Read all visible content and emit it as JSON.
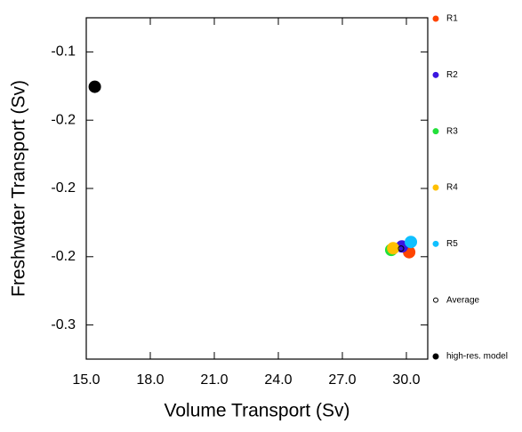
{
  "chart_data": {
    "type": "scatter",
    "xlabel": "Volume Transport (Sv)",
    "ylabel": "Freshwater Transport (Sv)",
    "xlim": [
      15,
      31
    ],
    "ylim": [
      -0.325,
      -0.075
    ],
    "xticks": [
      {
        "value": 15,
        "label": "15.0"
      },
      {
        "value": 18,
        "label": "18.0"
      },
      {
        "value": 21,
        "label": "21.0"
      },
      {
        "value": 24,
        "label": "24.0"
      },
      {
        "value": 27,
        "label": "27.0"
      },
      {
        "value": 30,
        "label": "30.0"
      }
    ],
    "yticks": [
      {
        "value": -0.1,
        "label": "-0.1"
      },
      {
        "value": -0.15,
        "label": "-0.2"
      },
      -0.2,
      {
        "value": -0.25,
        "label": "-0.2"
      },
      -0.3
    ],
    "series": [
      {
        "name": "R1",
        "color": "#ff4500",
        "filled": true,
        "x": [
          30.13
        ],
        "values": [
          -0.2467
        ]
      },
      {
        "name": "R2",
        "color": "#3a16e0",
        "filled": true,
        "x": [
          29.79
        ],
        "values": [
          -0.2425
        ]
      },
      {
        "name": "R3",
        "color": "#22e03a",
        "filled": true,
        "x": [
          29.29
        ],
        "values": [
          -0.245
        ]
      },
      {
        "name": "R4",
        "color": "#ffc000",
        "filled": true,
        "x": [
          29.38
        ],
        "values": [
          -0.2438
        ]
      },
      {
        "name": "R5",
        "color": "#10c0ff",
        "filled": true,
        "x": [
          30.21
        ],
        "values": [
          -0.2392
        ]
      },
      {
        "name": "Average",
        "color": "#000000",
        "filled": false,
        "x": [
          29.75
        ],
        "values": [
          -0.244
        ]
      },
      {
        "name": "high-res. model",
        "color": "#000000",
        "filled": true,
        "x": [
          15.4
        ],
        "values": [
          -0.1255
        ]
      }
    ]
  }
}
